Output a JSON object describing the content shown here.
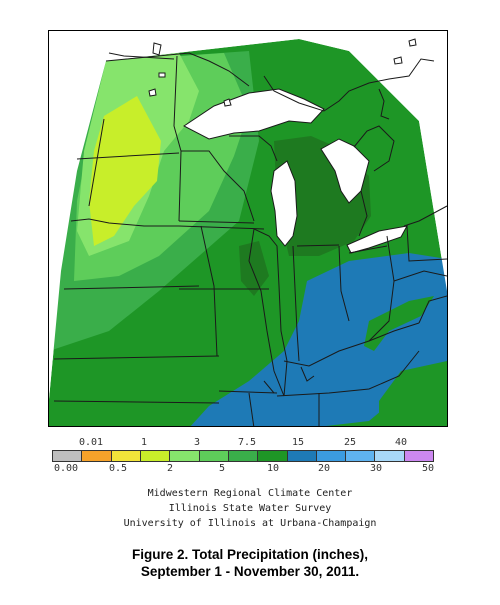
{
  "legend": {
    "top_labels": [
      "0.01",
      "1",
      "3",
      "7.5",
      "15",
      "25",
      "40"
    ],
    "bottom_labels": [
      "0.00",
      "0.5",
      "2",
      "5",
      "10",
      "20",
      "30",
      "50"
    ],
    "colors": [
      "#bebebe",
      "#f6a22a",
      "#f2e43a",
      "#c8ee2a",
      "#86e46c",
      "#5ecd5a",
      "#3aae4a",
      "#1e9626",
      "#1e7ab6",
      "#3b9be0",
      "#5fb3f0",
      "#a8d8f8",
      "#cc88f0"
    ]
  },
  "credits": {
    "line1": "Midwestern Regional Climate Center",
    "line2": "Illinois State Water Survey",
    "line3": "University of Illinois at Urbana-Champaign"
  },
  "caption": {
    "line1": "Figure 2. Total Precipitation (inches),",
    "line2": "September 1 - November 30, 2011."
  },
  "map": {
    "lake_color": "#ffffff",
    "border_color": "#1a1a1a"
  }
}
